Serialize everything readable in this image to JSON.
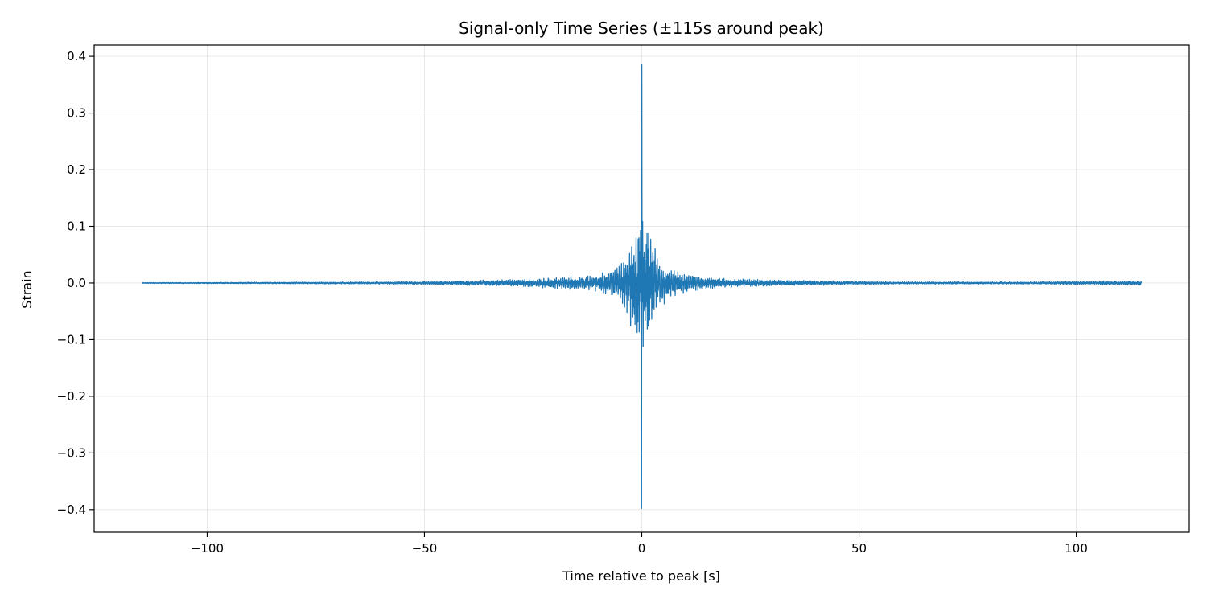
{
  "chart_data": {
    "type": "line",
    "title": "Signal-only Time Series (±115s around peak)",
    "xlabel": "Time relative to peak [s]",
    "ylabel": "Strain",
    "xlim": [
      -126,
      126
    ],
    "ylim": [
      -0.44,
      0.42
    ],
    "x_ticks": [
      {
        "value": -100,
        "label": "−100"
      },
      {
        "value": -50,
        "label": "−50"
      },
      {
        "value": 0,
        "label": "0"
      },
      {
        "value": 50,
        "label": "50"
      },
      {
        "value": 100,
        "label": "100"
      }
    ],
    "y_ticks": [
      {
        "value": 0.4,
        "label": "0.4"
      },
      {
        "value": 0.3,
        "label": "0.3"
      },
      {
        "value": 0.2,
        "label": "0.2"
      },
      {
        "value": 0.1,
        "label": "0.1"
      },
      {
        "value": 0.0,
        "label": "0.0"
      },
      {
        "value": -0.1,
        "label": "−0.1"
      },
      {
        "value": -0.2,
        "label": "−0.2"
      },
      {
        "value": -0.3,
        "label": "−0.3"
      },
      {
        "value": -0.4,
        "label": "−0.4"
      }
    ],
    "grid": true,
    "series": [
      {
        "name": "Strain",
        "color": "#1f77b4",
        "x_range": [
          -115,
          115
        ],
        "peak_x": 0,
        "peak_max": 0.385,
        "peak_min": -0.398,
        "envelope": [
          {
            "x": -115,
            "amp": 0.0008
          },
          {
            "x": -60,
            "amp": 0.002
          },
          {
            "x": -40,
            "amp": 0.004
          },
          {
            "x": -25,
            "amp": 0.007
          },
          {
            "x": -15,
            "amp": 0.011
          },
          {
            "x": -10,
            "amp": 0.015
          },
          {
            "x": -7,
            "amp": 0.025
          },
          {
            "x": -5,
            "amp": 0.035
          },
          {
            "x": -3,
            "amp": 0.06
          },
          {
            "x": -1.5,
            "amp": 0.1
          },
          {
            "x": -0.5,
            "amp": 0.14
          },
          {
            "x": 0,
            "amp": 0.15
          },
          {
            "x": 0.5,
            "amp": 0.13
          },
          {
            "x": 1.5,
            "amp": 0.1
          },
          {
            "x": 3,
            "amp": 0.06
          },
          {
            "x": 5,
            "amp": 0.035
          },
          {
            "x": 8,
            "amp": 0.022
          },
          {
            "x": 12,
            "amp": 0.013
          },
          {
            "x": 20,
            "amp": 0.007
          },
          {
            "x": 40,
            "amp": 0.004
          },
          {
            "x": 60,
            "amp": 0.002
          },
          {
            "x": 90,
            "amp": 0.002
          },
          {
            "x": 100,
            "amp": 0.003
          },
          {
            "x": 115,
            "amp": 0.004
          }
        ]
      }
    ]
  }
}
